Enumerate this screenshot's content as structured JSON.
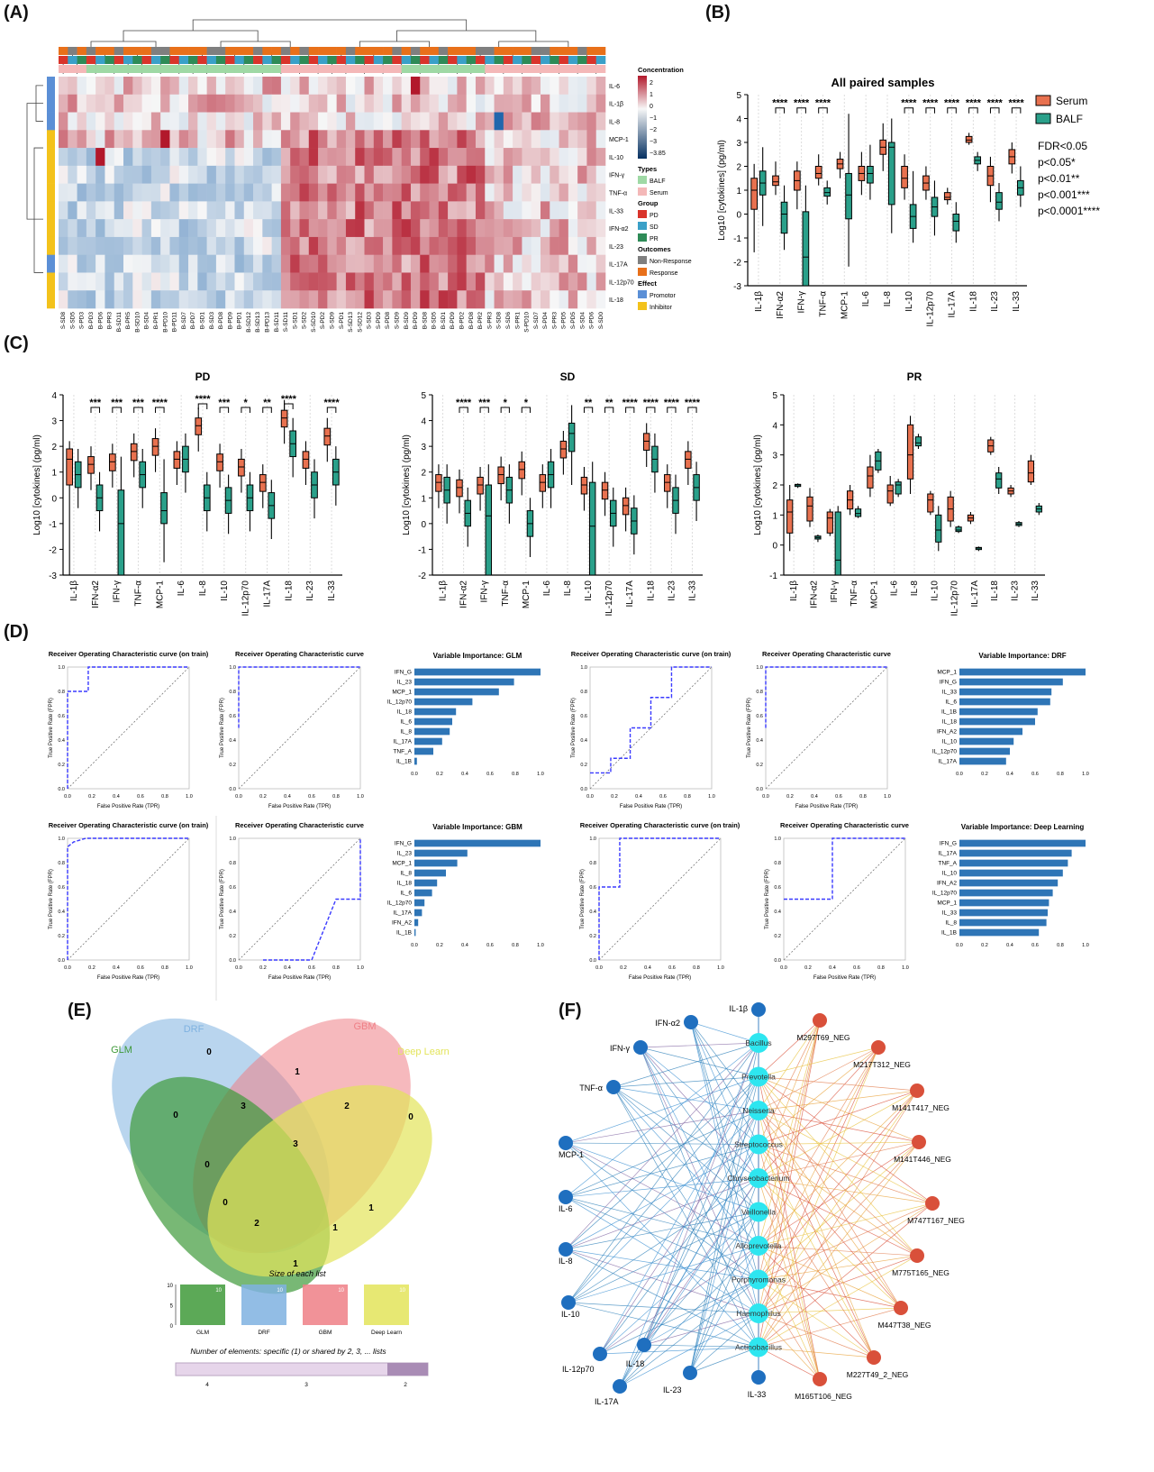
{
  "panel_labels": [
    "(A)",
    "(B)",
    "(C)",
    "(D)",
    "(E)",
    "(F)"
  ],
  "colors": {
    "serum": "#e8714f",
    "balf": "#2aa08a",
    "heat_high": "#b2182b",
    "heat_low": "#2166ac",
    "venn_glm": "#3f9a3a",
    "venn_drf": "#7fb2e0",
    "venn_gbm": "#ef7f86",
    "venn_dl": "#e3e45a",
    "network_left": "#1f6fbf",
    "network_mid": "#2ee6f0",
    "network_right": "#d9503a",
    "roc_line": "#3a3aff",
    "bar": "#2e75b6"
  },
  "panel_a": {
    "legend_concentration_title": "Concentration",
    "legend_concentration_ticks": [
      "2",
      "1",
      "0",
      "−1",
      "−2",
      "−3",
      "−3.85"
    ],
    "legend_groups": [
      {
        "title": "Types",
        "items": [
          {
            "label": "BALF",
            "color": "#9fd9a5"
          },
          {
            "label": "Serum",
            "color": "#f4b8b8"
          }
        ]
      },
      {
        "title": "Group",
        "items": [
          {
            "label": "PD",
            "color": "#d9342b"
          },
          {
            "label": "SD",
            "color": "#3aa0c8"
          },
          {
            "label": "PR",
            "color": "#2e8b57"
          }
        ]
      },
      {
        "title": "Outcomes",
        "items": [
          {
            "label": "Non-Response",
            "color": "#7f7f7f"
          },
          {
            "label": "Response",
            "color": "#e8701a"
          }
        ]
      },
      {
        "title": "Effect",
        "items": [
          {
            "label": "Promotor",
            "color": "#5b8fd6"
          },
          {
            "label": "Inhibitor",
            "color": "#f3c21b"
          }
        ]
      }
    ],
    "rows": [
      "IL-6",
      "IL-1β",
      "IL-8",
      "MCP-1",
      "IL-10",
      "IFN-γ",
      "TNF-α",
      "IL-33",
      "IFN-α2",
      "IL-23",
      "IL-17A",
      "IL-12p70",
      "IL-18"
    ],
    "columns": [
      "S-SD8",
      "S-SD5",
      "S-PD3",
      "B-PD3",
      "B-PD6",
      "B-PR3",
      "B-SD11",
      "B-PR5",
      "B-SD10",
      "B-SD4",
      "B-PR1",
      "B-PD10",
      "B-PD11",
      "B-SD7",
      "B-PD7",
      "B-SD1",
      "B-SD3",
      "B-PD8",
      "B-PD9",
      "B-PD1",
      "B-SD12",
      "B-SD13",
      "B-PD13",
      "B-SD11",
      "S-SD11",
      "S-SD1",
      "S-SD2",
      "S-SD10",
      "S-PD2",
      "S-SD9",
      "S-PD1",
      "S-SD13",
      "S-SD12",
      "S-SD3",
      "S-PD9",
      "S-PD8",
      "S-SD9",
      "B-SD9",
      "B-PD9",
      "B-SD8",
      "B-SD5",
      "B-SD1",
      "B-PD9",
      "B-PD2",
      "B-PD8",
      "B-PR2",
      "S-PR3",
      "S-SD8",
      "S-SD6",
      "S-PR1",
      "S-PD10",
      "S-SD7",
      "S-PD4",
      "S-PR3",
      "S-PD5",
      "S-PD5",
      "S-SD4",
      "S-PD6",
      "S-SD0"
    ]
  },
  "panel_b": {
    "title": "All paired samples",
    "legend": [
      "Serum",
      "BALF"
    ],
    "significance_notes": [
      "FDR<0.05",
      "p<0.05*",
      "p<0.01**",
      "p<0.001***",
      "p<0.0001****"
    ],
    "ylabel": "Log10 [cytokines] (pg/ml)",
    "yticks": [
      "5",
      "4",
      "3",
      "2",
      "1",
      "0",
      "-1",
      "-2",
      "-3"
    ],
    "categories": [
      "IL-1β",
      "IFN-α2",
      "IFN-γ",
      "TNF-α",
      "MCP-1",
      "IL-6",
      "IL-8",
      "IL-10",
      "IL-12p70",
      "IL-17A",
      "IL-18",
      "IL-23",
      "IL-33"
    ],
    "stars": [
      "",
      "****",
      "****",
      "****",
      "",
      "",
      "",
      "****",
      "****",
      "****",
      "****",
      "****",
      "****"
    ]
  },
  "panel_c": [
    {
      "title": "PD",
      "ylabel": "Log10 [cytokines] (pg/ml)",
      "ylim": [
        -3,
        4
      ],
      "categories": [
        "IL-1β",
        "IFN-α2",
        "IFN-γ",
        "TNF-α",
        "MCP-1",
        "IL-6",
        "IL-8",
        "IL-10",
        "IL-12p70",
        "IL-17A",
        "IL-18",
        "IL-23",
        "IL-33"
      ],
      "stars": [
        "",
        "***",
        "***",
        "***",
        "****",
        "",
        "****",
        "***",
        "*",
        "**",
        "****",
        "",
        "****"
      ]
    },
    {
      "title": "SD",
      "ylabel": "Log10 [cytokines] (pg/ml)",
      "ylim": [
        -2,
        5
      ],
      "categories": [
        "IL-1β",
        "IFN-α2",
        "IFN-γ",
        "TNF-α",
        "MCP-1",
        "IL-6",
        "IL-8",
        "IL-10",
        "IL-12p70",
        "IL-17A",
        "IL-18",
        "IL-23",
        "IL-33"
      ],
      "stars": [
        "",
        "****",
        "***",
        "*",
        "*",
        "",
        "",
        "**",
        "**",
        "****",
        "****",
        "****",
        "****"
      ]
    },
    {
      "title": "PR",
      "ylabel": "Log10 [cytokines] (pg/ml)",
      "ylim": [
        -1,
        5
      ],
      "categories": [
        "IL-1β",
        "IFN-α2",
        "IFN-γ",
        "TNF-α",
        "MCP-1",
        "IL-6",
        "IL-8",
        "IL-10",
        "IL-12p70",
        "IL-17A",
        "IL-18",
        "IL-23",
        "IL-33"
      ],
      "stars": [
        "",
        "",
        "",
        "",
        "",
        "",
        "",
        "",
        "",
        "",
        "",
        "",
        ""
      ]
    }
  ],
  "panel_d": {
    "roc_titles": [
      "Receiver Operating Characteristic curve (on train)",
      "Receiver Operating Characteristic curve"
    ],
    "roc_xlabel": "False Positive Rate (TPR)",
    "roc_ylabel": "True Positive Rate (FPR)",
    "axis_ticks": [
      "0.0",
      "0.2",
      "0.4",
      "0.6",
      "0.8",
      "1.0"
    ],
    "models": [
      {
        "importance_title": "Variable Importance: GLM",
        "vars": [
          "IFN_G",
          "IL_23",
          "MCP_1",
          "IL_12p70",
          "IL_18",
          "IL_6",
          "IL_8",
          "IL_17A",
          "TNF_A",
          "IL_1B"
        ],
        "values": [
          1.0,
          0.79,
          0.67,
          0.46,
          0.33,
          0.3,
          0.28,
          0.22,
          0.15,
          0.02
        ],
        "roc_train": [
          [
            0,
            0
          ],
          [
            0,
            0.8
          ],
          [
            0.17,
            0.8
          ],
          [
            0.17,
            1
          ],
          [
            1,
            1
          ]
        ],
        "roc_test": [
          [
            0,
            0.5
          ],
          [
            0,
            1
          ],
          [
            1,
            1
          ]
        ]
      },
      {
        "importance_title": "Variable Importance: DRF",
        "vars": [
          "MCP_1",
          "IFN_G",
          "IL_33",
          "IL_6",
          "IL_1B",
          "IL_18",
          "IFN_A2",
          "IL_10",
          "IL_12p70",
          "IL_17A"
        ],
        "values": [
          1.0,
          0.82,
          0.73,
          0.72,
          0.62,
          0.6,
          0.5,
          0.43,
          0.4,
          0.37
        ],
        "roc_train": [
          [
            0,
            0.13
          ],
          [
            0.17,
            0.13
          ],
          [
            0.17,
            0.25
          ],
          [
            0.33,
            0.25
          ],
          [
            0.33,
            0.5
          ],
          [
            0.5,
            0.5
          ],
          [
            0.5,
            0.75
          ],
          [
            0.67,
            0.75
          ],
          [
            0.67,
            1
          ],
          [
            1,
            1
          ]
        ],
        "roc_test": [
          [
            0,
            0.5
          ],
          [
            0,
            1
          ],
          [
            1,
            1
          ]
        ]
      },
      {
        "importance_title": "Variable Importance: GBM",
        "vars": [
          "IFN_G",
          "IL_23",
          "MCP_1",
          "IL_8",
          "IL_18",
          "IL_6",
          "IL_12p70",
          "IL_17A",
          "IFN_A2",
          "IL_1B"
        ],
        "values": [
          1.0,
          0.42,
          0.34,
          0.25,
          0.18,
          0.14,
          0.08,
          0.06,
          0.03,
          0.01
        ],
        "roc_train": [
          [
            0,
            0
          ],
          [
            0,
            0.93
          ],
          [
            0.05,
            0.97
          ],
          [
            0.15,
            1
          ],
          [
            1,
            1
          ]
        ],
        "roc_test": [
          [
            0.2,
            0
          ],
          [
            0.6,
            0
          ],
          [
            0.8,
            0.5
          ],
          [
            1,
            0.5
          ],
          [
            1,
            1
          ]
        ]
      },
      {
        "importance_title": "Variable Importance: Deep Learning",
        "vars": [
          "IFN_G",
          "IL_17A",
          "TNF_A",
          "IL_10",
          "IFN_A2",
          "IL_12p70",
          "MCP_1",
          "IL_33",
          "IL_8",
          "IL_1B"
        ],
        "values": [
          1.0,
          0.89,
          0.86,
          0.82,
          0.78,
          0.74,
          0.71,
          0.7,
          0.69,
          0.63
        ],
        "roc_train": [
          [
            0,
            0
          ],
          [
            0,
            0.6
          ],
          [
            0.17,
            0.6
          ],
          [
            0.17,
            1
          ],
          [
            1,
            1
          ]
        ],
        "roc_test": [
          [
            0,
            0.5
          ],
          [
            0.4,
            0.5
          ],
          [
            0.4,
            1
          ],
          [
            1,
            1
          ]
        ]
      }
    ]
  },
  "panel_e": {
    "set_labels": [
      "DRF",
      "GBM",
      "GLM",
      "Deep Learn"
    ],
    "region_counts": [
      "0",
      "1",
      "0",
      "0",
      "3",
      "2",
      "0",
      "3",
      "0",
      "1",
      "2",
      "1",
      "1"
    ],
    "bar_title": "Size of each list",
    "bar_categories": [
      "GLM",
      "DRF",
      "GBM",
      "Deep Learn"
    ],
    "bar_values": [
      10,
      10,
      10,
      10
    ],
    "bar_value_labels": [
      "10",
      "10",
      "10",
      "10"
    ],
    "yticks": [
      "0",
      "5",
      "10"
    ],
    "shared_title": "Number of elements: specific (1) or shared by 2, 3, ... lists",
    "shared_ticks": [
      "4",
      "3",
      "2"
    ]
  },
  "panel_f": {
    "left_nodes": [
      "IL-1β",
      "IFN-α2",
      "IFN-γ",
      "TNF-α",
      "MCP-1",
      "IL-6",
      "IL-8",
      "IL-10",
      "IL-12p70",
      "IL-17A",
      "IL-18",
      "IL-23",
      "IL-33"
    ],
    "middle_nodes": [
      "Bacillus",
      "Prevotella",
      "Neisseria",
      "Streptococcus",
      "Chryseobacterium",
      "Veillonella",
      "Alloprevotella",
      "Porphyromonas",
      "Haemophilus",
      "Actinobacillus"
    ],
    "right_nodes": [
      "M297T69_NEG",
      "M217T312_NEG",
      "M141T417_NEG",
      "M141T446_NEG",
      "M747T167_NEG",
      "M775T165_NEG",
      "M447T38_NEG",
      "M227T49_2_NEG",
      "M165T106_NEG"
    ]
  }
}
